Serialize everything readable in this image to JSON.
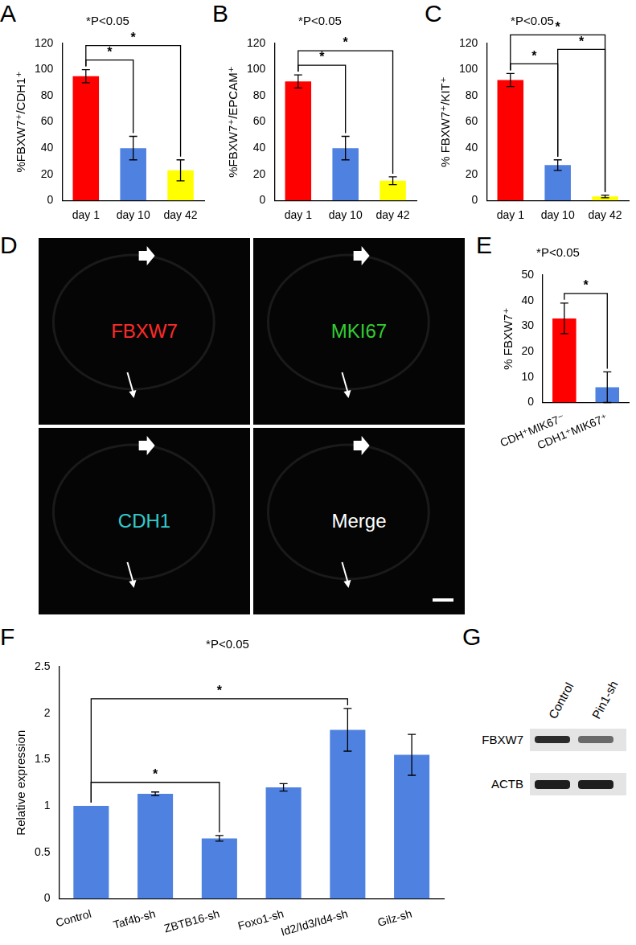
{
  "chart_data": [
    {
      "panel": "A",
      "type": "bar",
      "title": "*P<0.05",
      "y_label": "%FBXW7⁺/CDH1⁺",
      "categories": [
        "day 1",
        "day 10",
        "day 42"
      ],
      "values": [
        95,
        40,
        23
      ],
      "errors": [
        5,
        9,
        8
      ],
      "colors": [
        "#ff0000",
        "#4f81e0",
        "#ffff00"
      ],
      "ylim": [
        0,
        120
      ],
      "yticks": [
        0,
        20,
        40,
        60,
        80,
        100,
        120
      ],
      "grid": false,
      "annotations": [
        {
          "from": 0,
          "to": 1,
          "label": "*"
        },
        {
          "from": 0,
          "to": 2,
          "label": "*"
        }
      ]
    },
    {
      "panel": "B",
      "type": "bar",
      "title": "*P<0.05",
      "y_label": "%FBXW7⁺/EPCAM⁺",
      "categories": [
        "day 1",
        "day 10",
        "day 42"
      ],
      "values": [
        91,
        40,
        15
      ],
      "errors": [
        5,
        9,
        3
      ],
      "colors": [
        "#ff0000",
        "#4f81e0",
        "#ffff00"
      ],
      "ylim": [
        0,
        120
      ],
      "yticks": [
        0,
        20,
        40,
        60,
        80,
        100,
        120
      ],
      "grid": false,
      "annotations": [
        {
          "from": 0,
          "to": 1,
          "label": "*"
        },
        {
          "from": 0,
          "to": 2,
          "label": "*"
        }
      ]
    },
    {
      "panel": "C",
      "type": "bar",
      "title": "*P<0.05",
      "y_label": "% FBXW7⁺/KIT⁺",
      "categories": [
        "day 1",
        "day 10",
        "day 42"
      ],
      "values": [
        92,
        27,
        3
      ],
      "errors": [
        5,
        4,
        1
      ],
      "colors": [
        "#ff0000",
        "#4f81e0",
        "#ffff00"
      ],
      "ylim": [
        0,
        120
      ],
      "yticks": [
        0,
        20,
        40,
        60,
        80,
        100,
        120
      ],
      "grid": false,
      "annotations": [
        {
          "from": 0,
          "to": 1,
          "label": "*"
        },
        {
          "from": 0,
          "to": 2,
          "label": "*"
        },
        {
          "from": 1,
          "to": 2,
          "label": "*"
        }
      ]
    },
    {
      "panel": "E",
      "type": "bar",
      "title": "*P<0.05",
      "y_label": "% FBXW7⁺",
      "categories": [
        "CDH⁺MIK67⁻",
        "CDH1⁺MIK67⁺"
      ],
      "values": [
        33,
        6
      ],
      "errors": [
        6,
        6
      ],
      "colors": [
        "#ff0000",
        "#4f81e0"
      ],
      "ylim": [
        0,
        50
      ],
      "yticks": [
        0,
        10,
        20,
        30,
        40,
        50
      ],
      "grid": false,
      "annotations": [
        {
          "from": 0,
          "to": 1,
          "label": "*"
        }
      ]
    },
    {
      "panel": "F",
      "type": "bar",
      "title": "*P<0.05",
      "y_label": "Relative expression",
      "categories": [
        "Control",
        "Taf4b-sh",
        "ZBTB16-sh",
        "Foxo1-sh",
        "Id2/Id3/Id4-sh",
        "Gilz-sh"
      ],
      "values": [
        1,
        1.13,
        0.65,
        1.2,
        1.82,
        1.55
      ],
      "errors": [
        0,
        0.02,
        0.03,
        0.04,
        0.23,
        0.22
      ],
      "color": "#4f81e0",
      "ylim": [
        0,
        2.5
      ],
      "yticks": [
        0,
        0.5,
        1,
        1.5,
        2,
        2.5
      ],
      "grid": false,
      "annotations": [
        {
          "from": 0,
          "to": 2,
          "label": "*"
        },
        {
          "from": 0,
          "to": 4,
          "label": "*"
        }
      ]
    }
  ],
  "image_panels": [
    {
      "panel": "D",
      "type": "micrograph",
      "quadrants": [
        {
          "label": "FBXW7",
          "color": "#ff2a2a"
        },
        {
          "label": "MKI67",
          "color": "#33cc33"
        },
        {
          "label": "CDH1",
          "color": "#33cccc"
        },
        {
          "label": "Merge",
          "color": "#ffffff"
        }
      ]
    },
    {
      "panel": "G",
      "type": "western_blot",
      "lanes": [
        "Control",
        "Pin1-sh"
      ],
      "rows": [
        "FBXW7",
        "ACTB"
      ]
    }
  ]
}
